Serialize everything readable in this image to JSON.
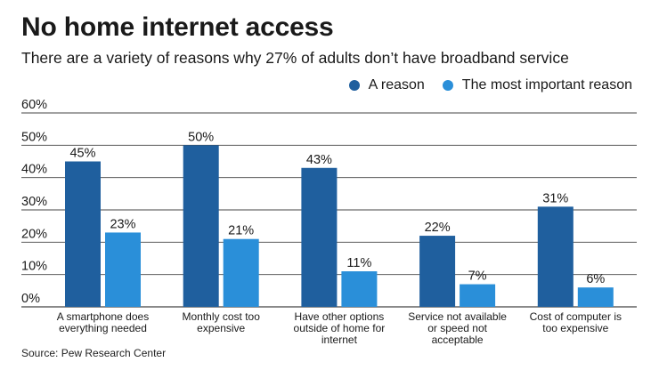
{
  "title": "No home internet access",
  "subtitle": "There are a variety of reasons why 27% of adults don’t have broadband service",
  "source": "Source: Pew Research Center",
  "colors": {
    "a_reason": "#1f5f9e",
    "most_important": "#2a8fd9",
    "grid": "#444444"
  },
  "chart_data": {
    "type": "bar",
    "categories": [
      [
        "A smartphone does",
        "everything needed"
      ],
      [
        "Monthly cost too",
        "expensive"
      ],
      [
        "Have other options",
        "outside of home for",
        "internet"
      ],
      [
        "Service not available",
        "or speed not",
        "acceptable"
      ],
      [
        "Cost of computer is",
        "too expensive"
      ]
    ],
    "series": [
      {
        "name": "A reason",
        "values": [
          45,
          50,
          43,
          22,
          31
        ],
        "labels": [
          "45%",
          "50%",
          "43%",
          "22%",
          "31%"
        ]
      },
      {
        "name": "The most important reason",
        "values": [
          23,
          21,
          11,
          7,
          6
        ],
        "labels": [
          "23%",
          "21%",
          "11%",
          "7%",
          "6%"
        ]
      }
    ],
    "ylim": [
      0,
      60
    ],
    "yticks": [
      "0%",
      "10%",
      "20%",
      "30%",
      "40%",
      "50%",
      "60%"
    ],
    "xlabel": "",
    "ylabel": "",
    "grid": true,
    "legend": "top-right"
  }
}
